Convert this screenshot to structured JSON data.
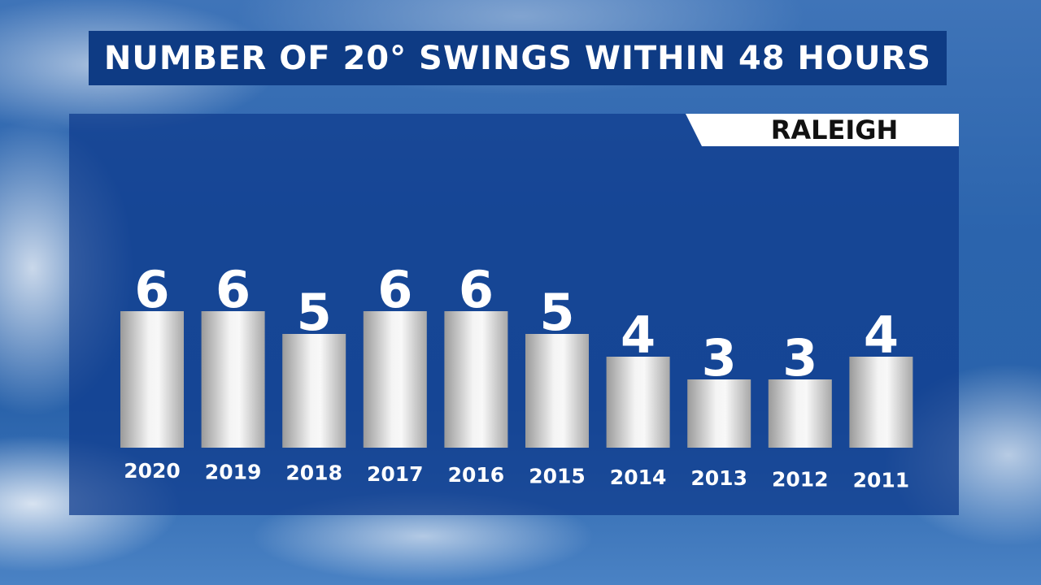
{
  "chart_data": {
    "type": "bar",
    "title": "NUMBER OF 20° SWINGS WITHIN 48 HOURS",
    "subtitle": "RALEIGH",
    "categories": [
      "2020",
      "2019",
      "2018",
      "2017",
      "2016",
      "2015",
      "2014",
      "2013",
      "2012",
      "2011"
    ],
    "values": [
      6,
      6,
      5,
      6,
      6,
      5,
      4,
      3,
      3,
      4
    ],
    "xlabel": "",
    "ylabel": "",
    "ylim": [
      0,
      6
    ],
    "grid": false,
    "legend": "none",
    "bar_color": "#d9d9d9",
    "title_bg_color": "#0e3b84"
  }
}
